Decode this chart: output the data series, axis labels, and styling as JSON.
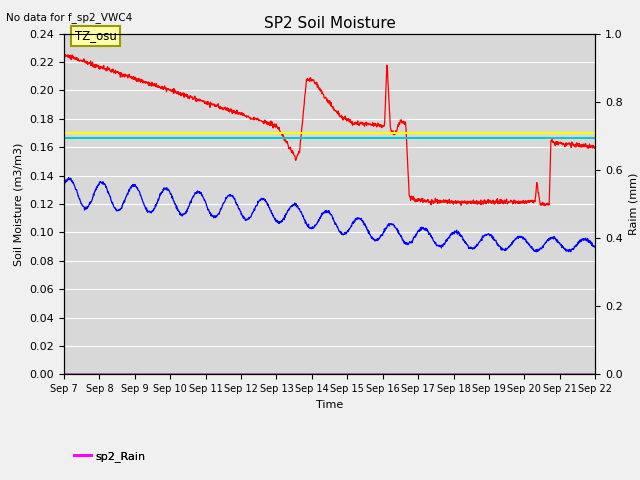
{
  "title": "SP2 Soil Moisture",
  "top_left_note": "No data for f_sp2_VWC4",
  "xlabel": "Time",
  "ylabel_left": "Soil Moisture (m3/m3)",
  "ylabel_right": "Raim (mm)",
  "annotation": "TZ_osu",
  "ylim_left": [
    0.0,
    0.24
  ],
  "ylim_right": [
    0.0,
    1.0
  ],
  "xtick_labels": [
    "Sep 7",
    "Sep 8",
    "Sep 9",
    "Sep 10",
    "Sep 11",
    "Sep 12",
    "Sep 13",
    "Sep 14",
    "Sep 15",
    "Sep 16",
    "Sep 17",
    "Sep 18",
    "Sep 19",
    "Sep 20",
    "Sep 21",
    "Sep 22"
  ],
  "vwc1_color": "#ff0000",
  "vwc2_color": "#0000ff",
  "vwc3_color": "#00cc00",
  "vwc5_color": "#ffff00",
  "vwc6_color": "#aa00aa",
  "vwc7_color": "#00cccc",
  "rain_color": "#ff00ff",
  "bg_color": "#d8d8d8",
  "fig_bg_color": "#f0f0f0",
  "grid_color": "#ffffff",
  "vwc5_value": 0.17,
  "vwc7_value": 0.1665,
  "left_ticks": [
    0.0,
    0.02,
    0.04,
    0.06,
    0.08,
    0.1,
    0.12,
    0.14,
    0.16,
    0.18,
    0.2,
    0.22,
    0.24
  ],
  "right_ticks": [
    0.0,
    0.2,
    0.4,
    0.6,
    0.8,
    1.0
  ]
}
